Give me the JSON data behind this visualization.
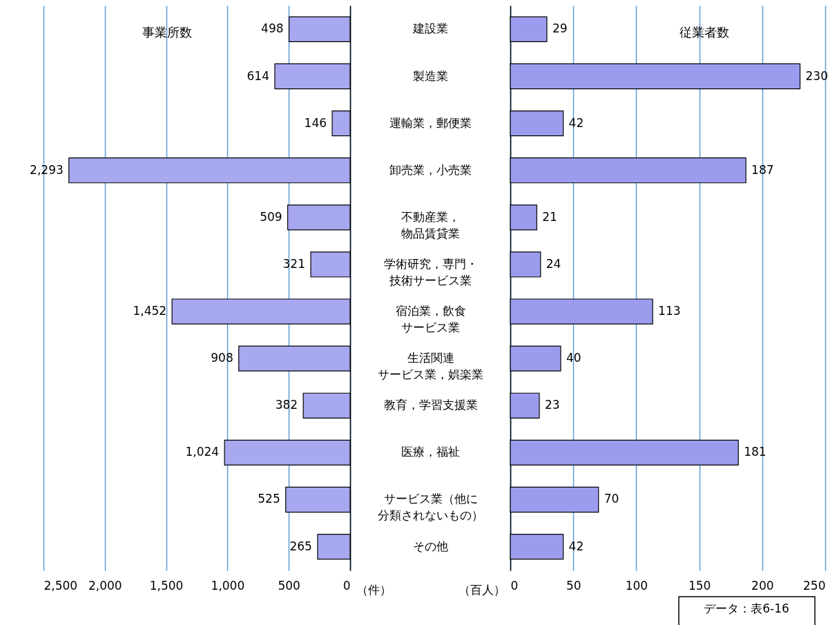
{
  "chart_data": [
    {
      "type": "bar",
      "orientation": "horizontal",
      "title": "事業所数",
      "xlabel": "（件）",
      "categories": [
        "建設業",
        "製造業",
        "運輸業，郵便業",
        "卸売業，小売業",
        "不動産業，物品賃貸業",
        "学術研究，専門・技術サービス業",
        "宿泊業，飲食サービス業",
        "生活関連サービス業，娯楽業",
        "教育，学習支援業",
        "医療，福祉",
        "サービス業（他に分類されないもの）",
        "その他"
      ],
      "values": [
        498,
        614,
        146,
        2293,
        509,
        321,
        1452,
        908,
        382,
        1024,
        525,
        265
      ],
      "value_labels": [
        "498",
        "614",
        "146",
        "2,293",
        "509",
        "321",
        "1,452",
        "908",
        "382",
        "1,024",
        "525",
        "265"
      ],
      "color": "#a8a8f0",
      "xlim": [
        2500,
        0
      ],
      "xticks": [
        {
          "value": 2500,
          "label": "2,500"
        },
        {
          "value": 2000,
          "label": "2,000"
        },
        {
          "value": 1500,
          "label": "1,500"
        },
        {
          "value": 1000,
          "label": "1,000"
        },
        500,
        0
      ],
      "grid": "x"
    },
    {
      "type": "bar",
      "orientation": "horizontal",
      "title": "従業者数",
      "xlabel": "（百人）",
      "annotations": [
        "データ：表6-16"
      ],
      "categories": [
        "建設業",
        "製造業",
        "運輸業，郵便業",
        "卸売業，小売業",
        "不動産業，物品賃貸業",
        "学術研究，専門・技術サービス業",
        "宿泊業，飲食サービス業",
        "生活関連サービス業，娯楽業",
        "教育，学習支援業",
        "医療，福祉",
        "サービス業（他に分類されないもの）",
        "その他"
      ],
      "values": [
        29,
        230,
        42,
        187,
        21,
        24,
        113,
        40,
        23,
        181,
        70,
        42
      ],
      "data_labels": true,
      "color": "#9c9cee",
      "xlim": [
        0,
        250
      ],
      "xticks": [
        0,
        50,
        100,
        150,
        200,
        250
      ],
      "grid": "x",
      "tick_labels": "x"
    }
  ]
}
